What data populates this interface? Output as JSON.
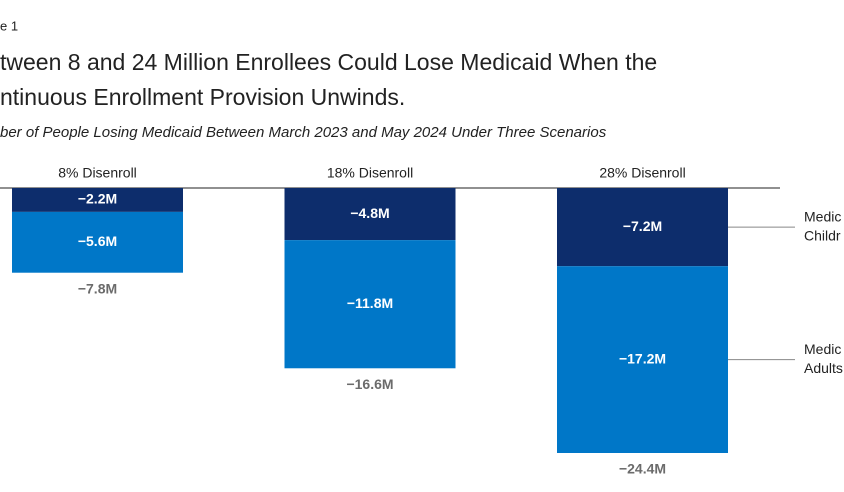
{
  "chart_data": {
    "type": "stacked-bar",
    "figure_label": "e 1",
    "title_lines": [
      "tween 8 and 24 Million Enrollees Could Lose Medicaid When the",
      "ntinuous Enrollment Provision Unwinds."
    ],
    "subtitle": "ber of People Losing Medicaid Between March 2023 and May 2024 Under Three Scenarios",
    "categories": [
      "8% Disenroll",
      "18% Disenroll",
      "28% Disenroll"
    ],
    "series": [
      {
        "name": "Medic Childr",
        "color": "#0d2d6c",
        "values": [
          -2.2,
          -4.8,
          -7.2
        ],
        "value_labels": [
          "−2.2M",
          "−4.8M",
          "−7.2M"
        ]
      },
      {
        "name": "Medic Adults",
        "color": "#0077c8",
        "values": [
          -5.6,
          -11.8,
          -17.2
        ],
        "value_labels": [
          "−5.6M",
          "−11.8M",
          "−17.2M"
        ]
      }
    ],
    "totals": {
      "values": [
        -7.8,
        -16.6,
        -24.4
      ],
      "value_labels": [
        "−7.8M",
        "−16.6M",
        "−24.4M"
      ],
      "color": "#6b6b6b"
    }
  }
}
